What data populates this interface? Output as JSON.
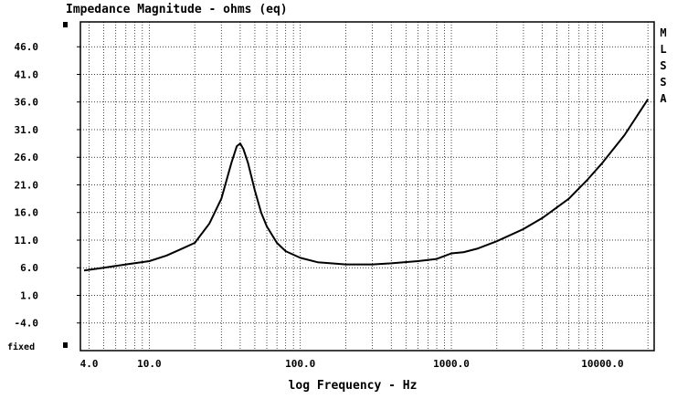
{
  "chart_data": {
    "type": "line",
    "title": "Impedance Magnitude - ohms (eq)",
    "xlabel": "log Frequency - Hz",
    "ylabel": "",
    "x_scale": "log",
    "xlim": [
      3.5,
      22000
    ],
    "ylim": [
      -9,
      50.5
    ],
    "grid": true,
    "y_ticks": [
      "46.0",
      "41.0",
      "36.0",
      "31.0",
      "26.0",
      "21.0",
      "16.0",
      "11.0",
      "6.0",
      "1.0",
      "-4.0"
    ],
    "y_tick_values": [
      46,
      41,
      36,
      31,
      26,
      21,
      16,
      11,
      6,
      1,
      -4
    ],
    "x_ticks": [
      "4.0",
      "10.0",
      "100.0",
      "1000.0",
      "10000.0"
    ],
    "x_tick_values": [
      4,
      10,
      100,
      1000,
      10000
    ],
    "side_label": [
      "M",
      "L",
      "S",
      "S",
      "A"
    ],
    "scale_note": "fixed",
    "series": [
      {
        "x": [
          3.7,
          5,
          7,
          10,
          13,
          16,
          20,
          25,
          30,
          35,
          38,
          40,
          42,
          45,
          50,
          55,
          60,
          70,
          80,
          100,
          130,
          160,
          200,
          300,
          400,
          600,
          800,
          1000,
          1200,
          1500,
          2000,
          3000,
          4000,
          6000,
          8000,
          10000,
          14000,
          20000
        ],
        "y": [
          5.5,
          6.0,
          6.6,
          7.2,
          8.2,
          9.3,
          10.5,
          14.0,
          18.5,
          25.0,
          28.0,
          28.5,
          27.5,
          25.0,
          20.0,
          16.0,
          13.5,
          10.5,
          9.0,
          7.8,
          7.0,
          6.8,
          6.6,
          6.6,
          6.8,
          7.2,
          7.6,
          8.6,
          8.8,
          9.5,
          10.8,
          13.0,
          15.0,
          18.5,
          22.0,
          25.0,
          30.0,
          36.5
        ]
      }
    ]
  }
}
